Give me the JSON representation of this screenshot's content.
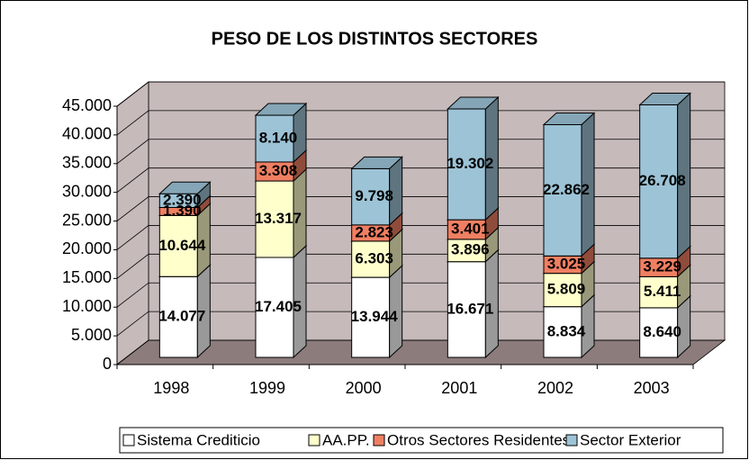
{
  "chart_data": {
    "type": "bar3d_stacked",
    "title": "PESO DE LOS DISTINTOS SECTORES",
    "categories": [
      "1998",
      "1999",
      "2000",
      "2001",
      "2002",
      "2003"
    ],
    "series": [
      {
        "name": "Sistema Crediticio",
        "color": "#ffffff",
        "values": [
          14077,
          17405,
          13944,
          16671,
          8834,
          8640
        ],
        "value_labels": [
          "14.077",
          "17.405",
          "13.944",
          "16.671",
          "8.834",
          "8.640"
        ]
      },
      {
        "name": "AA.PP.",
        "color": "#ffffcc",
        "values": [
          10644,
          13317,
          6303,
          3896,
          5809,
          5411
        ],
        "value_labels": [
          "10.644",
          "13.317",
          "6.303",
          "3.896",
          "5.809",
          "5.411"
        ]
      },
      {
        "name": "Otros Sectores Residentes",
        "color": "#f07f62",
        "values": [
          1390,
          3308,
          2823,
          3401,
          3025,
          3229
        ],
        "value_labels": [
          "1.390",
          "3.308",
          "2.823",
          "3.401",
          "3.025",
          "3.229"
        ]
      },
      {
        "name": "Sector Exterior",
        "color": "#9dc3d6",
        "values": [
          2390,
          8140,
          9798,
          19302,
          22862,
          26708
        ],
        "value_labels": [
          "2.390",
          "8.140",
          "9.798",
          "19.302",
          "22.862",
          "26.708"
        ]
      }
    ],
    "ylim": [
      0,
      45000
    ],
    "yticks": [
      0,
      {
        "value": 5000,
        "label": "5.000"
      },
      {
        "value": 10000,
        "label": "10.000"
      },
      {
        "value": 15000,
        "label": "15.000"
      },
      {
        "value": 20000,
        "label": "20.000"
      },
      {
        "value": 25000,
        "label": "25.000"
      },
      {
        "value": 30000,
        "label": "30.000"
      },
      {
        "value": 35000,
        "label": "35.000"
      },
      {
        "value": 40000,
        "label": "40.000"
      },
      {
        "value": 45000,
        "label": "45.000"
      }
    ],
    "grid": true,
    "legend": "bottom"
  }
}
